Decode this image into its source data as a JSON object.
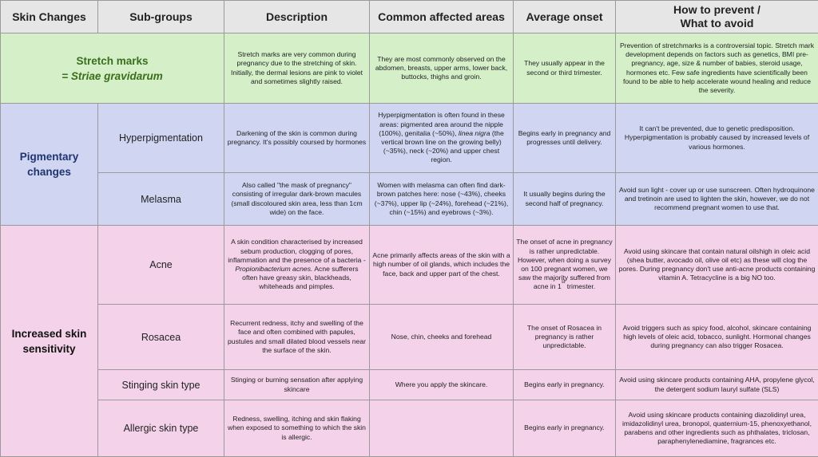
{
  "headers": {
    "skin_changes": "Skin Changes",
    "sub_groups": "Sub-groups",
    "description": "Description",
    "areas": "Common affected areas",
    "onset": "Average onset",
    "prevent_line1": "How to prevent /",
    "prevent_line2": "What to avoid"
  },
  "stretch": {
    "group": "Stretch marks",
    "latin": "= Striae gravidarum",
    "description": "Stretch marks are very common during pregnancy due to the stretching of skin. Initially, the dermal lesions are pink to violet and sometimes slightly raised.",
    "areas": "They are most commonly observed on the abdomen, breasts, upper arms, lower back, buttocks, thighs and groin.",
    "onset": "They usually appear in the second or third trimester.",
    "prevent": "Prevention of stretchmarks is a controversial topic. Stretch mark development depends on factors such as genetics, BMI pre-pregnancy, age, size & number of babies, steroid usage, hormones etc. Few safe ingredients have scientifically been found to be able to help accelerate wound healing and reduce the severity."
  },
  "pigmentary": {
    "group": "Pigmentary changes",
    "hyper": {
      "sub": "Hyperpigmentation",
      "description": "Darkening of the skin is common during pregnancy. It's possibly coursed by hormones",
      "areas_1": "Hyperpigmentation is often found in these areas: pigmented area around the nipple (100%), genitalia (~50%),",
      "areas_italic": "linea nigra",
      "areas_2": "(the vertical brown line on the growing belly) (~35%), neck (~20%) and upper chest region.",
      "onset": "Begins early in pregnancy and progresses until delivery.",
      "prevent": "It can't be prevented, due to genetic predisposition. Hyperpigmentation is probably caused by increased levels of various hormones."
    },
    "melasma": {
      "sub": "Melasma",
      "description": "Also called \"the mask of pregnancy\" consisting of irregular dark-brown macules (small discoloured skin area, less than 1cm wide) on the face.",
      "areas": "Women with melasma can often find dark-brown patches here: nose (~43%), cheeks (~37%), upper lip (~24%), forehead (~21%), chin (~15%) and eyebrows (~3%).",
      "onset": "It usually begins during the second half of pregnancy.",
      "prevent": "Avoid sun light - cover up or use sunscreen. Often hydroquinone and tretinoin are used to lighten the skin, however, we do not recommend pregnant women to use that."
    }
  },
  "sensitivity": {
    "group": "Increased skin sensitivity",
    "acne": {
      "sub": "Acne",
      "description_1": "A skin condition characterised by increased sebum production, clogging of pores, inflammation and the presence of a bacteria -",
      "description_italic": "Propionibacterium acnes.",
      "description_2": "Acne sufferers often have greasy skin, blackheads, whiteheads and pimples.",
      "areas": "Acne primarily affects areas of the skin with a high number of oil glands, which includes the face, back and upper part of the chest.",
      "onset_1": "The onset of acne in pregnancy is rather unpredictable. However, when doing a survey on 100 pregnant women, we saw the majority suffered from acne in 1",
      "onset_sup": "st",
      "onset_2": "trimester.",
      "prevent": "Avoid using skincare that contain natural oilshigh in oleic acid (shea butter, avocado oil, olive oil etc) as these will clog the pores. During pregnancy don't use anti-acne products containing vitamin A. Tetracycline is a big NO too."
    },
    "rosacea": {
      "sub": "Rosacea",
      "description": "Recurrent redness, itchy and swelling of the face and often combined with papules, pustules and small dilated blood vessels near the surface of the skin.",
      "areas": "Nose, chin, cheeks and forehead",
      "onset": "The onset of Rosacea in pregnancy is rather unpredictable.",
      "prevent": "Avoid triggers such as spicy food, alcohol, skincare containing high levels of oleic acid, tobacco, sunlight. Hormonal changes during pregnancy can also trigger Rosacea."
    },
    "stinging": {
      "sub": "Stinging skin type",
      "description": "Stinging or burning sensation after applying skincare",
      "areas": "Where you apply the skincare.",
      "onset": "Begins early in pregnancy.",
      "prevent": "Avoid using skincare products containing AHA, propylene glycol, the detergent sodium lauryl sulfate (SLS)"
    },
    "allergic": {
      "sub": "Allergic skin type",
      "description": "Redness, swelling, itching and skin flaking when exposed to something to which the skin is allergic.",
      "areas": "",
      "onset": "Begins early in pregnancy.",
      "prevent": "Avoid using skincare products containing diazolidinyl urea, imidazolidinyl urea, bronopol, quaternium-15, phenoxyethanol, parabens and other ingredients such as phthalates, triclosan, paraphenylenediamine, fragrances etc."
    }
  }
}
